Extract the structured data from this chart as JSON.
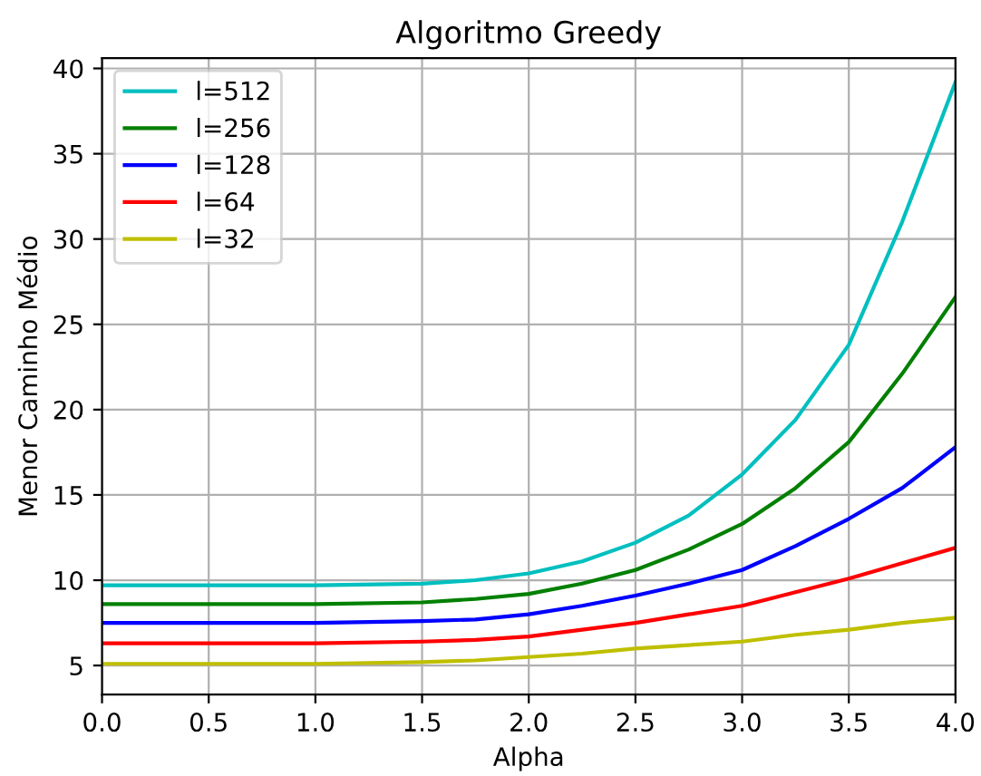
{
  "chart_data": {
    "type": "line",
    "title": "Algoritmo Greedy",
    "xlabel": "Alpha",
    "ylabel": "Menor Caminho Médio",
    "x": [
      0,
      0.5,
      1,
      1.5,
      1.75,
      2,
      2.25,
      2.5,
      2.75,
      3,
      3.25,
      3.5,
      3.75,
      4
    ],
    "series": [
      {
        "name": "l=512",
        "color": "#00bfbf",
        "values": [
          9.7,
          9.7,
          9.7,
          9.8,
          10.0,
          10.4,
          11.1,
          12.2,
          13.8,
          16.2,
          19.4,
          23.8,
          31.0,
          39.2
        ]
      },
      {
        "name": "l=256",
        "color": "#008000",
        "values": [
          8.6,
          8.6,
          8.6,
          8.7,
          8.9,
          9.2,
          9.8,
          10.6,
          11.8,
          13.3,
          15.4,
          18.1,
          22.1,
          26.6
        ]
      },
      {
        "name": "l=128",
        "color": "#0000ff",
        "values": [
          7.5,
          7.5,
          7.5,
          7.6,
          7.7,
          8.0,
          8.5,
          9.1,
          9.8,
          10.6,
          12.0,
          13.6,
          15.4,
          17.8
        ]
      },
      {
        "name": "l=64",
        "color": "#ff0000",
        "values": [
          6.3,
          6.3,
          6.3,
          6.4,
          6.5,
          6.7,
          7.1,
          7.5,
          8.0,
          8.5,
          9.3,
          10.1,
          11.0,
          11.9
        ]
      },
      {
        "name": "l=32",
        "color": "#bfbf00",
        "values": [
          5.1,
          5.1,
          5.1,
          5.2,
          5.3,
          5.5,
          5.7,
          6.0,
          6.2,
          6.4,
          6.8,
          7.1,
          7.5,
          7.8
        ]
      }
    ],
    "xlim": [
      0,
      4
    ],
    "ylim": [
      3.3,
      40.6
    ],
    "xticks": [
      {
        "value": 0,
        "label": "0.0"
      },
      0.5,
      {
        "value": 1,
        "label": "1.0"
      },
      1.5,
      {
        "value": 2,
        "label": "2.0"
      },
      2.5,
      {
        "value": 3,
        "label": "3.0"
      },
      3.5,
      {
        "value": 4,
        "label": "4.0"
      }
    ],
    "yticks": [
      5,
      10,
      15,
      20,
      25,
      30,
      35,
      40
    ],
    "grid": true,
    "legend": "top left",
    "marker": "none",
    "line_style": "solid"
  }
}
